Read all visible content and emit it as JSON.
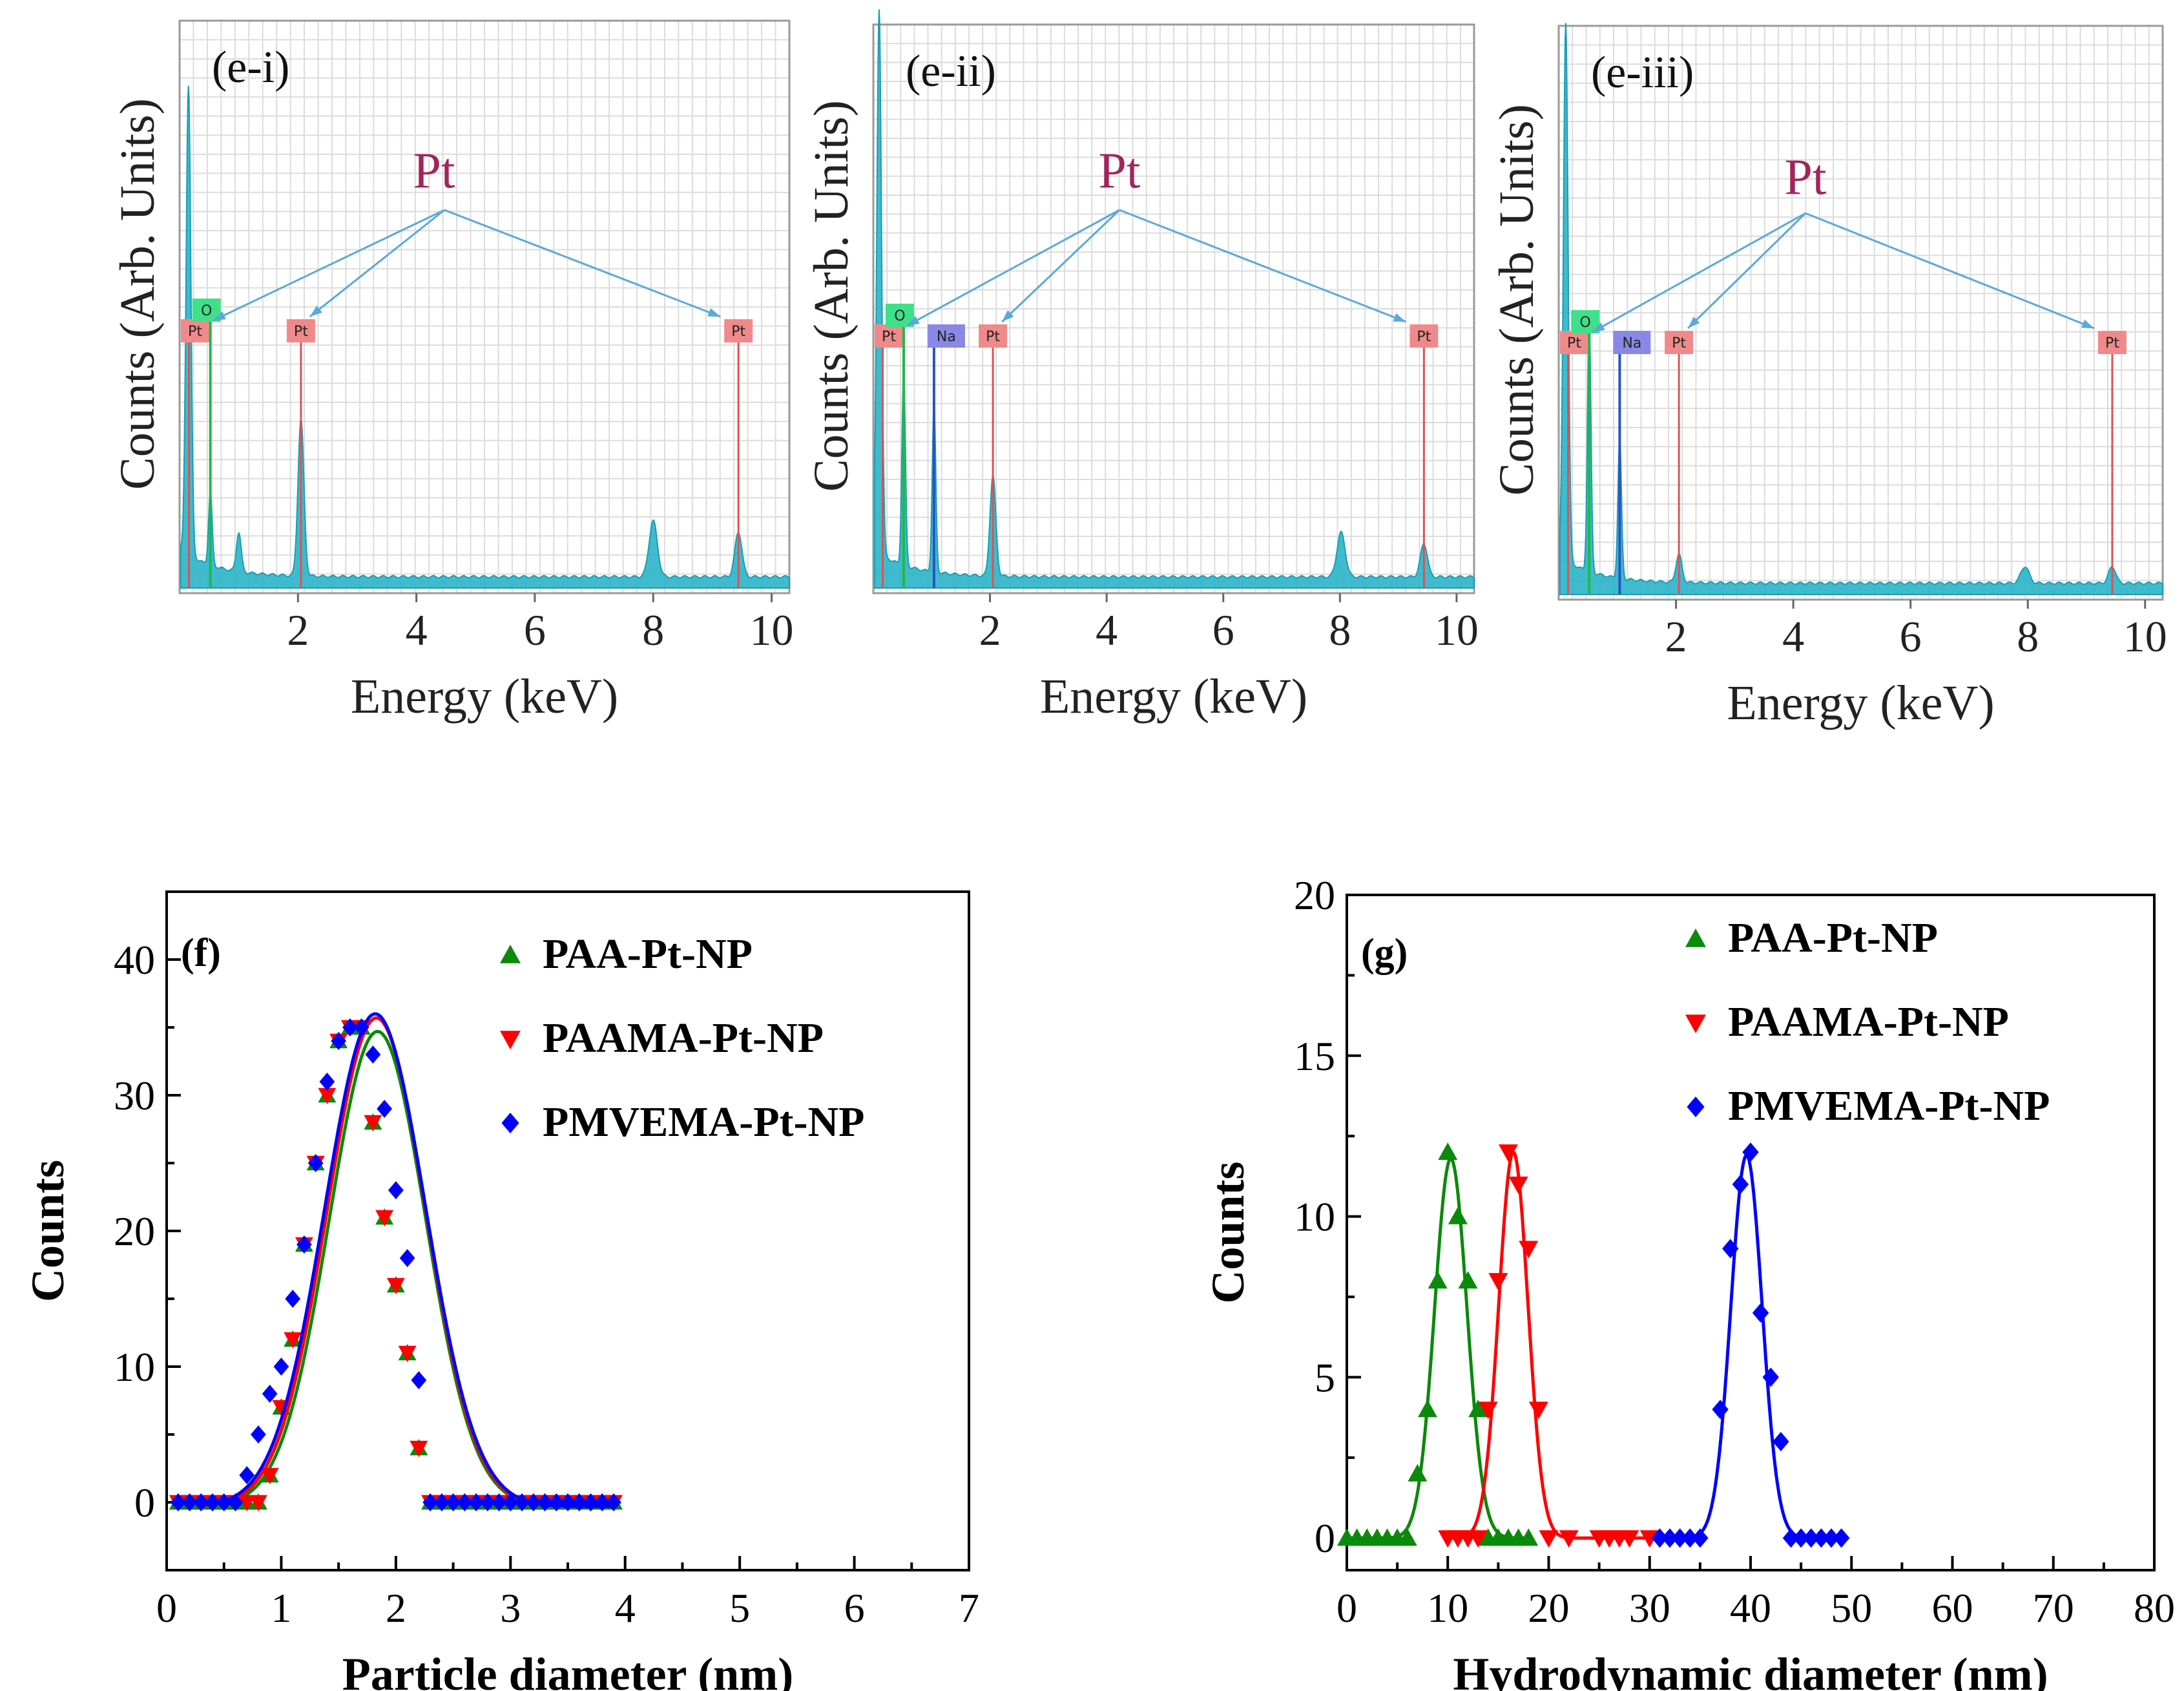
{
  "colors": {
    "eds_fill": "#2bb4c8",
    "eds_stroke": "#1a9db3",
    "pt_label": "#a3245a",
    "arrow": "#5aa9d8",
    "pt_tag": "#f08a8a",
    "o_tag": "#3fe08a",
    "na_tag": "#8a88e6",
    "pt_line": "#e05050",
    "o_line": "#1fb84a",
    "na_line": "#2a52c8",
    "green": "#0a8a0a",
    "red": "#ff0000",
    "blue": "#0000ff"
  },
  "eds_common": {
    "xlabel": "Energy (keV)",
    "ylabel": "Counts (Arb. Units)",
    "xticks": [
      "2",
      "4",
      "6",
      "8",
      "10"
    ],
    "pt_annotation": "Pt",
    "tag_pt": "Pt",
    "tag_o": "O",
    "tag_na": "Na"
  },
  "chart_data": [
    {
      "type": "area",
      "panel": "(e-i)",
      "title": "(e-i)",
      "xlabel": "Energy (keV)",
      "ylabel": "Counts (Arb. Units)",
      "xlim": [
        0,
        10.3
      ],
      "peaks": [
        {
          "x": 0.15,
          "h": 0.84,
          "w": 0.04
        },
        {
          "x": 0.52,
          "h": 0.13,
          "w": 0.03
        },
        {
          "x": 1.0,
          "h": 0.07,
          "w": 0.04
        },
        {
          "x": 2.05,
          "h": 0.28,
          "w": 0.05
        },
        {
          "x": 8.0,
          "h": 0.1,
          "w": 0.07
        },
        {
          "x": 9.44,
          "h": 0.08,
          "w": 0.06
        }
      ],
      "element_lines": [
        {
          "element": "Pt",
          "x": 0.05,
          "tag": "Pt"
        },
        {
          "element": "O",
          "x": 0.52,
          "tag": "O"
        },
        {
          "element": "Pt",
          "x": 2.05,
          "tag": "Pt"
        },
        {
          "element": "Pt",
          "x": 9.44,
          "tag": "Pt"
        }
      ]
    },
    {
      "type": "area",
      "panel": "(e-ii)",
      "title": "(e-ii)",
      "xlabel": "Energy (keV)",
      "ylabel": "Counts (Arb. Units)",
      "xlim": [
        0,
        10.3
      ],
      "peaks": [
        {
          "x": 0.1,
          "h": 0.98,
          "w": 0.04
        },
        {
          "x": 0.52,
          "h": 0.34,
          "w": 0.03
        },
        {
          "x": 1.04,
          "h": 0.3,
          "w": 0.03
        },
        {
          "x": 2.05,
          "h": 0.18,
          "w": 0.05
        },
        {
          "x": 8.02,
          "h": 0.08,
          "w": 0.07
        },
        {
          "x": 9.44,
          "h": 0.06,
          "w": 0.06
        }
      ],
      "element_lines": [
        {
          "element": "Pt",
          "x": 0.05,
          "tag": "Pt"
        },
        {
          "element": "O",
          "x": 0.52,
          "tag": "O"
        },
        {
          "element": "Na",
          "x": 1.04,
          "tag": "Na"
        },
        {
          "element": "Pt",
          "x": 2.05,
          "tag": "Pt"
        },
        {
          "element": "Pt",
          "x": 9.44,
          "tag": "Pt"
        }
      ]
    },
    {
      "type": "area",
      "panel": "(e-iii)",
      "title": "(e-iii)",
      "xlabel": "Energy (keV)",
      "ylabel": "Counts (Arb. Units)",
      "xlim": [
        0,
        10.3
      ],
      "peaks": [
        {
          "x": 0.12,
          "h": 0.96,
          "w": 0.04
        },
        {
          "x": 0.52,
          "h": 0.45,
          "w": 0.03
        },
        {
          "x": 1.04,
          "h": 0.25,
          "w": 0.03
        },
        {
          "x": 2.05,
          "h": 0.05,
          "w": 0.05
        },
        {
          "x": 7.95,
          "h": 0.03,
          "w": 0.07
        },
        {
          "x": 9.44,
          "h": 0.03,
          "w": 0.06
        }
      ],
      "element_lines": [
        {
          "element": "Pt",
          "x": 0.05,
          "tag": "Pt"
        },
        {
          "element": "O",
          "x": 0.52,
          "tag": "O"
        },
        {
          "element": "Na",
          "x": 1.04,
          "tag": "Na"
        },
        {
          "element": "Pt",
          "x": 2.05,
          "tag": "Pt"
        },
        {
          "element": "Pt",
          "x": 9.44,
          "tag": "Pt"
        }
      ]
    },
    {
      "type": "scatter",
      "panel": "(f)",
      "title": "(f)",
      "xlabel": "Particle diameter (nm)",
      "ylabel": "Counts",
      "xlim": [
        0,
        7
      ],
      "ylim": [
        -5,
        45
      ],
      "xticks": [
        0,
        1,
        2,
        3,
        4,
        5,
        6,
        7
      ],
      "yticks": [
        0,
        10,
        20,
        30,
        40
      ],
      "legend_position": "top-right",
      "series": [
        {
          "name": "PAA-Pt-NP",
          "marker": "triangle-up",
          "color": "green",
          "x": [
            0.1,
            0.2,
            0.3,
            0.4,
            0.5,
            0.6,
            0.7,
            0.8,
            0.9,
            1.0,
            1.1,
            1.2,
            1.3,
            1.4,
            1.5,
            1.6,
            1.7,
            1.8,
            1.9,
            2.0,
            2.1,
            2.2,
            2.3,
            2.4,
            2.5,
            2.6,
            2.7,
            2.8,
            2.9,
            3.0,
            3.1,
            3.2,
            3.3,
            3.4,
            3.5,
            3.6,
            3.7,
            3.8,
            3.9
          ],
          "y": [
            0,
            0,
            0,
            0,
            0,
            0,
            0,
            0,
            2,
            7,
            12,
            19,
            25,
            30,
            34,
            35,
            35,
            28,
            21,
            16,
            11,
            4,
            0,
            0,
            0,
            0,
            0,
            0,
            0,
            0,
            0,
            0,
            0,
            0,
            0,
            0,
            0,
            0,
            0
          ],
          "fit": {
            "mean": 1.84,
            "sigma": 0.42,
            "amplitude": 35.0
          }
        },
        {
          "name": "PAAMA-Pt-NP",
          "marker": "triangle-down",
          "color": "red",
          "x": [
            0.1,
            0.2,
            0.3,
            0.4,
            0.5,
            0.6,
            0.7,
            0.8,
            0.9,
            1.0,
            1.1,
            1.2,
            1.3,
            1.4,
            1.5,
            1.6,
            1.7,
            1.8,
            1.9,
            2.0,
            2.1,
            2.2,
            2.3,
            2.4,
            2.5,
            2.6,
            2.7,
            2.8,
            2.9,
            3.0,
            3.1,
            3.2,
            3.3,
            3.4,
            3.5,
            3.6,
            3.7,
            3.8,
            3.9
          ],
          "y": [
            0,
            0,
            0,
            0,
            0,
            0,
            0,
            0,
            2,
            7,
            12,
            19,
            25,
            30,
            34,
            35,
            35,
            28,
            21,
            16,
            11,
            4,
            0,
            0,
            0,
            0,
            0,
            0,
            0,
            0,
            0,
            0,
            0,
            0,
            0,
            0,
            0,
            0,
            0
          ],
          "fit": {
            "mean": 1.83,
            "sigma": 0.43,
            "amplitude": 36.0
          }
        },
        {
          "name": "PMVEMA-Pt-NP",
          "marker": "diamond",
          "color": "blue",
          "x": [
            0.1,
            0.2,
            0.3,
            0.4,
            0.5,
            0.6,
            0.7,
            0.8,
            0.9,
            1.0,
            1.1,
            1.2,
            1.3,
            1.4,
            1.5,
            1.6,
            1.7,
            1.8,
            1.9,
            2.0,
            2.1,
            2.2,
            2.3,
            2.4,
            2.5,
            2.6,
            2.7,
            2.8,
            2.9,
            3.0,
            3.1,
            3.2,
            3.3,
            3.4,
            3.5,
            3.6,
            3.7,
            3.8,
            3.9
          ],
          "y": [
            0,
            0,
            0,
            0,
            0,
            0,
            2,
            5,
            8,
            10,
            15,
            19,
            25,
            31,
            34,
            35,
            35,
            33,
            29,
            23,
            18,
            9,
            0,
            0,
            0,
            0,
            0,
            0,
            0,
            0,
            0,
            0,
            0,
            0,
            0,
            0,
            0,
            0,
            0
          ],
          "fit": {
            "mean": 1.82,
            "sigma": 0.44,
            "amplitude": 36.3
          }
        }
      ]
    },
    {
      "type": "scatter",
      "panel": "(g)",
      "title": "(g)",
      "xlabel": "Hydrodynamic diameter (nm)",
      "ylabel": "Counts",
      "xlim": [
        0,
        80
      ],
      "ylim": [
        -1,
        20
      ],
      "xticks": [
        0,
        10,
        20,
        30,
        40,
        50,
        60,
        70,
        80
      ],
      "yticks": [
        0,
        5,
        10,
        15,
        20
      ],
      "legend_position": "top-right",
      "series": [
        {
          "name": "PAA-Pt-NP",
          "marker": "triangle-up",
          "color": "green",
          "x": [
            0,
            1,
            2,
            3,
            4,
            5,
            6,
            7,
            8,
            9,
            10,
            11,
            12,
            13,
            14,
            15,
            16,
            17,
            18
          ],
          "y": [
            0,
            0,
            0,
            0,
            0,
            0,
            0,
            2,
            4,
            8,
            12,
            10,
            8,
            4,
            0,
            0,
            0,
            0,
            0
          ],
          "fit": {
            "mean": 10.3,
            "sigma": 1.6,
            "amplitude": 11.8
          }
        },
        {
          "name": "PAAMA-Pt-NP",
          "marker": "triangle-down",
          "color": "red",
          "x": [
            10,
            11,
            12,
            13,
            14,
            15,
            16,
            17,
            18,
            19,
            20,
            22,
            25,
            26,
            27,
            28,
            30
          ],
          "y": [
            0,
            0,
            0,
            0,
            4,
            8,
            12,
            11,
            9,
            4,
            0,
            0,
            0,
            0,
            0,
            0,
            0
          ],
          "fit": {
            "mean": 16.5,
            "sigma": 1.45,
            "amplitude": 12.0
          }
        },
        {
          "name": "PMVEMA-Pt-NP",
          "marker": "diamond",
          "color": "blue",
          "x": [
            31,
            32,
            33,
            34,
            35,
            37,
            38,
            39,
            40,
            41,
            42,
            43,
            44,
            45,
            46,
            47,
            48,
            49
          ],
          "y": [
            0,
            0,
            0,
            0,
            0,
            4,
            9,
            11,
            12,
            7,
            5,
            3,
            0,
            0,
            0,
            0,
            0,
            0
          ],
          "fit": {
            "mean": 39.6,
            "sigma": 1.55,
            "amplitude": 11.9
          }
        }
      ]
    }
  ]
}
